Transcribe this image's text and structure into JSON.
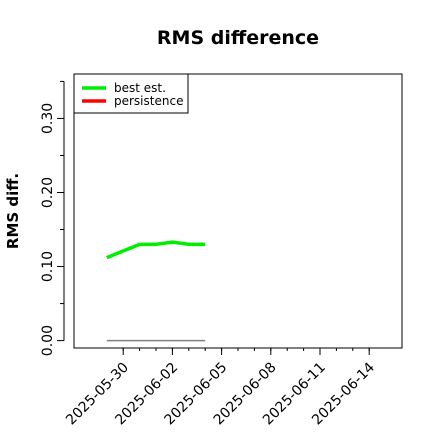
{
  "chart_data": {
    "type": "line",
    "title": "RMS difference",
    "xlabel": "",
    "ylabel": "RMS diff.",
    "x_type": "date",
    "xlim": [
      "2025-05-27",
      "2025-06-16"
    ],
    "ylim": [
      -0.01,
      0.36
    ],
    "x_ticks": [
      "2025-05-30",
      "2025-06-02",
      "2025-06-05",
      "2025-06-08",
      "2025-06-11",
      "2025-06-14"
    ],
    "y_ticks": [
      0.0,
      0.1,
      0.2,
      0.3
    ],
    "y_tick_labels": [
      "0.00",
      "0.10",
      "0.20",
      "0.30"
    ],
    "y_minor_ticks": [
      0.05,
      0.15,
      0.25,
      0.35
    ],
    "grid": false,
    "legend_position": "top-left",
    "series": [
      {
        "name": "best est.",
        "color": "#00ee00",
        "x": [
          "2025-05-29",
          "2025-05-31",
          "2025-06-01",
          "2025-06-02",
          "2025-06-03",
          "2025-06-04"
        ],
        "values": [
          0.112,
          0.13,
          0.13,
          0.133,
          0.13,
          0.13
        ]
      },
      {
        "name": "persistence",
        "color": "#ff0000",
        "x": [],
        "values": []
      }
    ],
    "reference_line": {
      "color": "#808080",
      "x": [
        "2025-05-29",
        "2025-06-04"
      ],
      "values": [
        0.0,
        0.0
      ]
    }
  }
}
